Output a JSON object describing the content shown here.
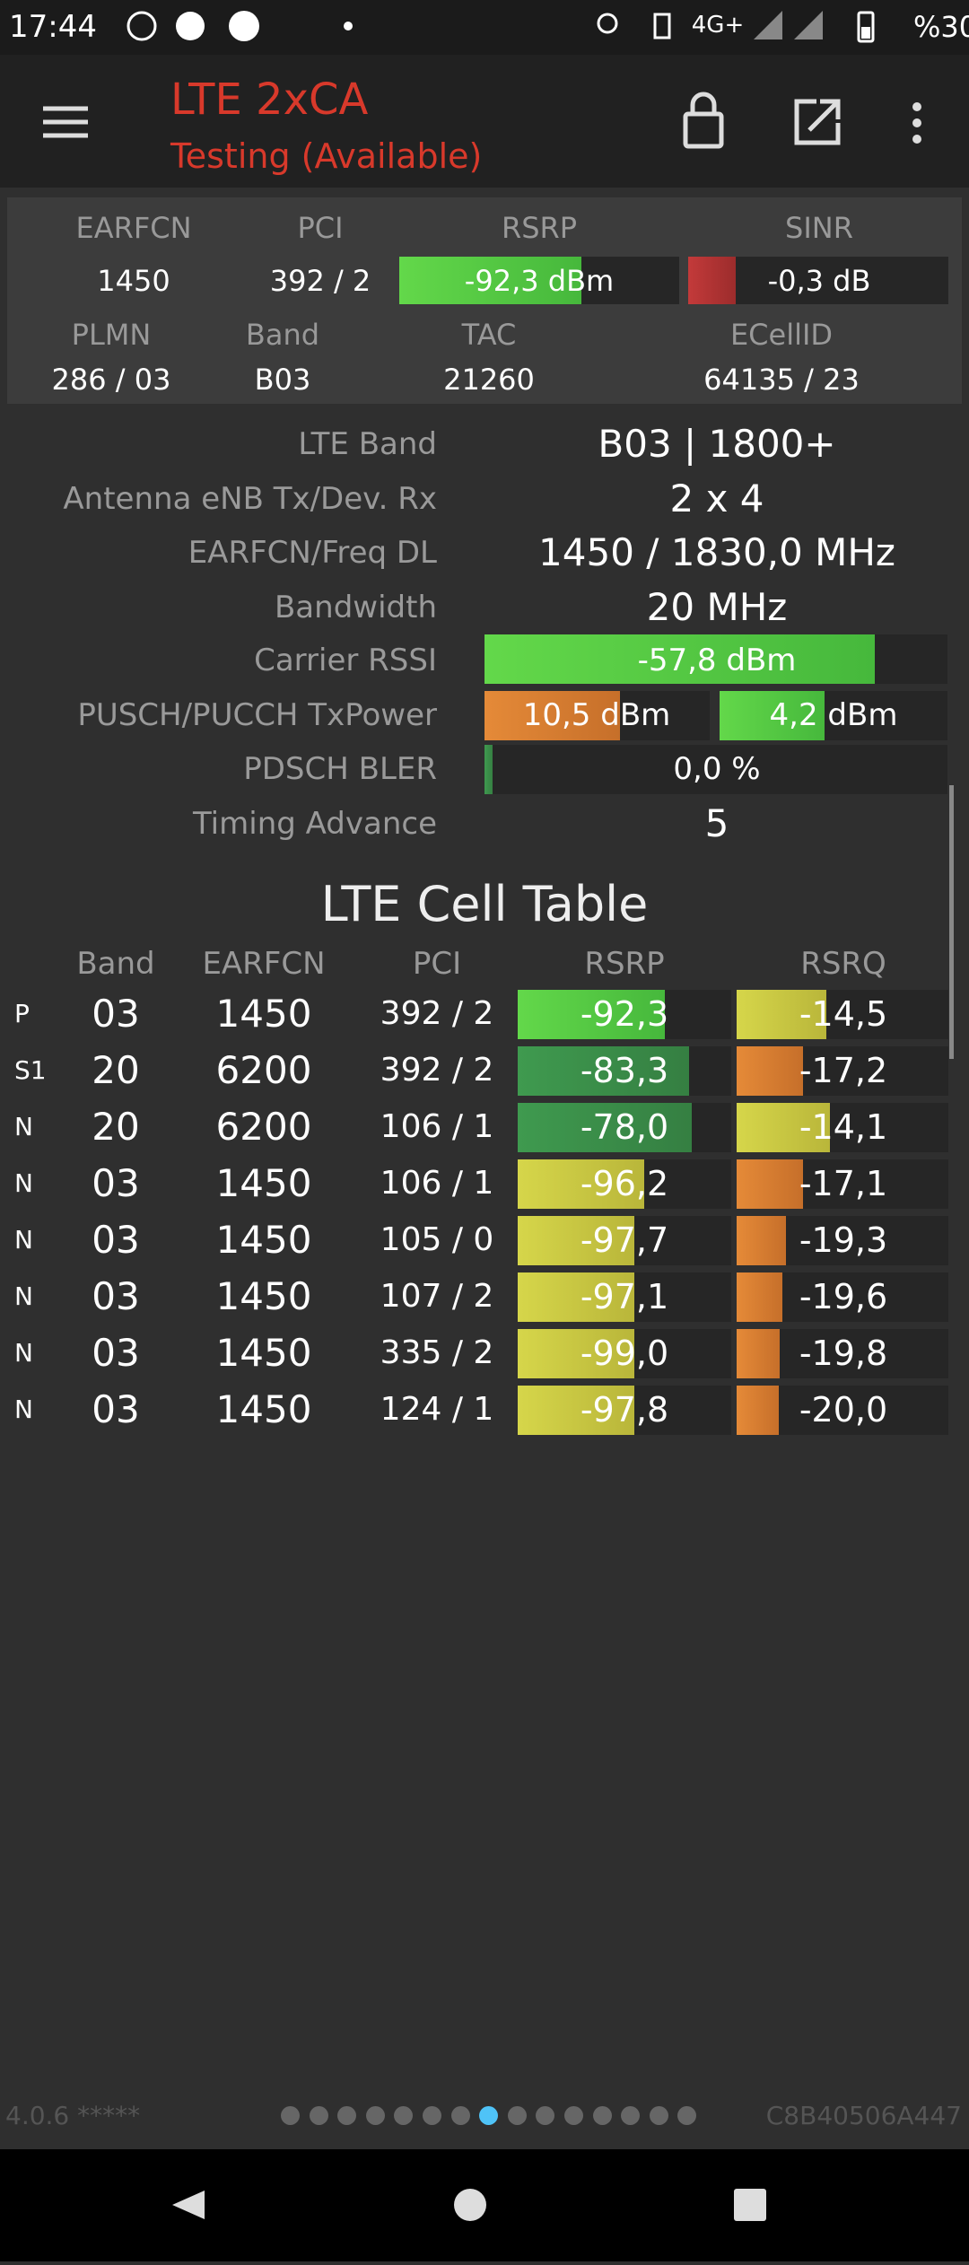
{
  "status_bar": {
    "time": "17:44",
    "network": "4G+",
    "battery": "%30"
  },
  "toolbar": {
    "title": "LTE 2xCA",
    "subtitle": "Testing (Available)"
  },
  "summary": {
    "headers_1": [
      "EARFCN",
      "PCI",
      "RSRP",
      "SINR"
    ],
    "values_1": [
      "1450",
      "392 / 2",
      "-92,3 dBm",
      "-0,3 dB"
    ],
    "headers_2": [
      "PLMN",
      "Band",
      "TAC",
      "ECellID"
    ],
    "values_2": [
      "286 / 03",
      "B03",
      "21260",
      "64135 / 23"
    ]
  },
  "details": [
    {
      "label": "LTE Band",
      "value": "B03 | 1800+"
    },
    {
      "label": "Antenna eNB Tx/Dev. Rx",
      "value": "2 x 4"
    },
    {
      "label": "EARFCN/Freq DL",
      "value": "1450 / 1830,0 MHz"
    },
    {
      "label": "Bandwidth",
      "value": "20 MHz"
    },
    {
      "label": "Carrier RSSI",
      "value": "-57,8 dBm"
    },
    {
      "label": "PUSCH/PUCCH TxPower",
      "values": [
        "10,5 dBm",
        "4,2 dBm"
      ]
    },
    {
      "label": "PDSCH BLER",
      "value": "0,0 %"
    },
    {
      "label": "Timing Advance",
      "value": "5"
    }
  ],
  "cell_table": {
    "title": "LTE Cell Table",
    "headers": [
      "Band",
      "EARFCN",
      "PCI",
      "RSRP",
      "RSRQ"
    ],
    "rows": [
      [
        "P",
        "03",
        "1450",
        "392 / 2",
        "-92,3",
        "-14,5"
      ],
      [
        "S1",
        "20",
        "6200",
        "392 / 2",
        "-83,3",
        "-17,2"
      ],
      [
        "N",
        "20",
        "6200",
        "106 / 1",
        "-78,0",
        "-14,1"
      ],
      [
        "N",
        "03",
        "1450",
        "106 / 1",
        "-96,2",
        "-17,1"
      ],
      [
        "N",
        "03",
        "1450",
        "105 / 0",
        "-97,7",
        "-19,3"
      ],
      [
        "N",
        "03",
        "1450",
        "107 / 2",
        "-97,1",
        "-19,6"
      ],
      [
        "N",
        "03",
        "1450",
        "335 / 2",
        "-99,0",
        "-19,8"
      ],
      [
        "N",
        "03",
        "1450",
        "124 / 1",
        "-97,8",
        "-20,0"
      ]
    ]
  },
  "footer": {
    "version": "4.0.6 *****",
    "device_id": "C8B40506A447"
  }
}
